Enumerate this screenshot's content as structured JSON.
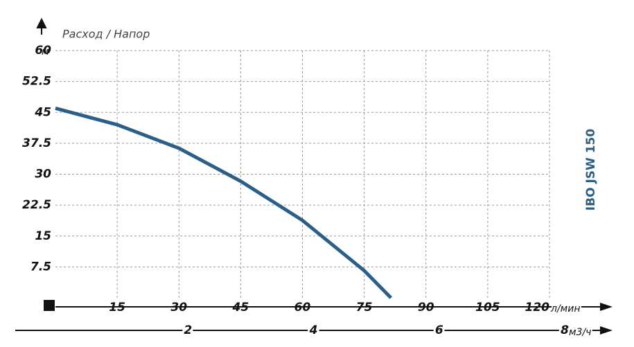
{
  "chart_data": {
    "type": "line",
    "title": "IBO JSW 150",
    "ylabel": "Расход / Напор",
    "yunit": "м",
    "xunit": "л/мин",
    "x2unit": "м3/ч",
    "x": [
      0,
      15,
      30,
      45,
      60,
      75,
      81.5
    ],
    "series": [
      {
        "name": "IBO JSW 150",
        "color": "#2b5f87",
        "values": [
          46,
          42,
          36.3,
          28.3,
          18.8,
          6.6,
          0
        ]
      }
    ],
    "xlim": [
      0,
      120
    ],
    "xticks": [
      15,
      30,
      45,
      60,
      75,
      90,
      105,
      120
    ],
    "ylim": [
      0,
      60
    ],
    "yticks": [
      7.5,
      15,
      22.5,
      30,
      37.5,
      45,
      52.5,
      60
    ],
    "x2lim": [
      0,
      8
    ],
    "x2ticks": [
      2,
      4,
      6,
      8
    ],
    "grid": true
  }
}
